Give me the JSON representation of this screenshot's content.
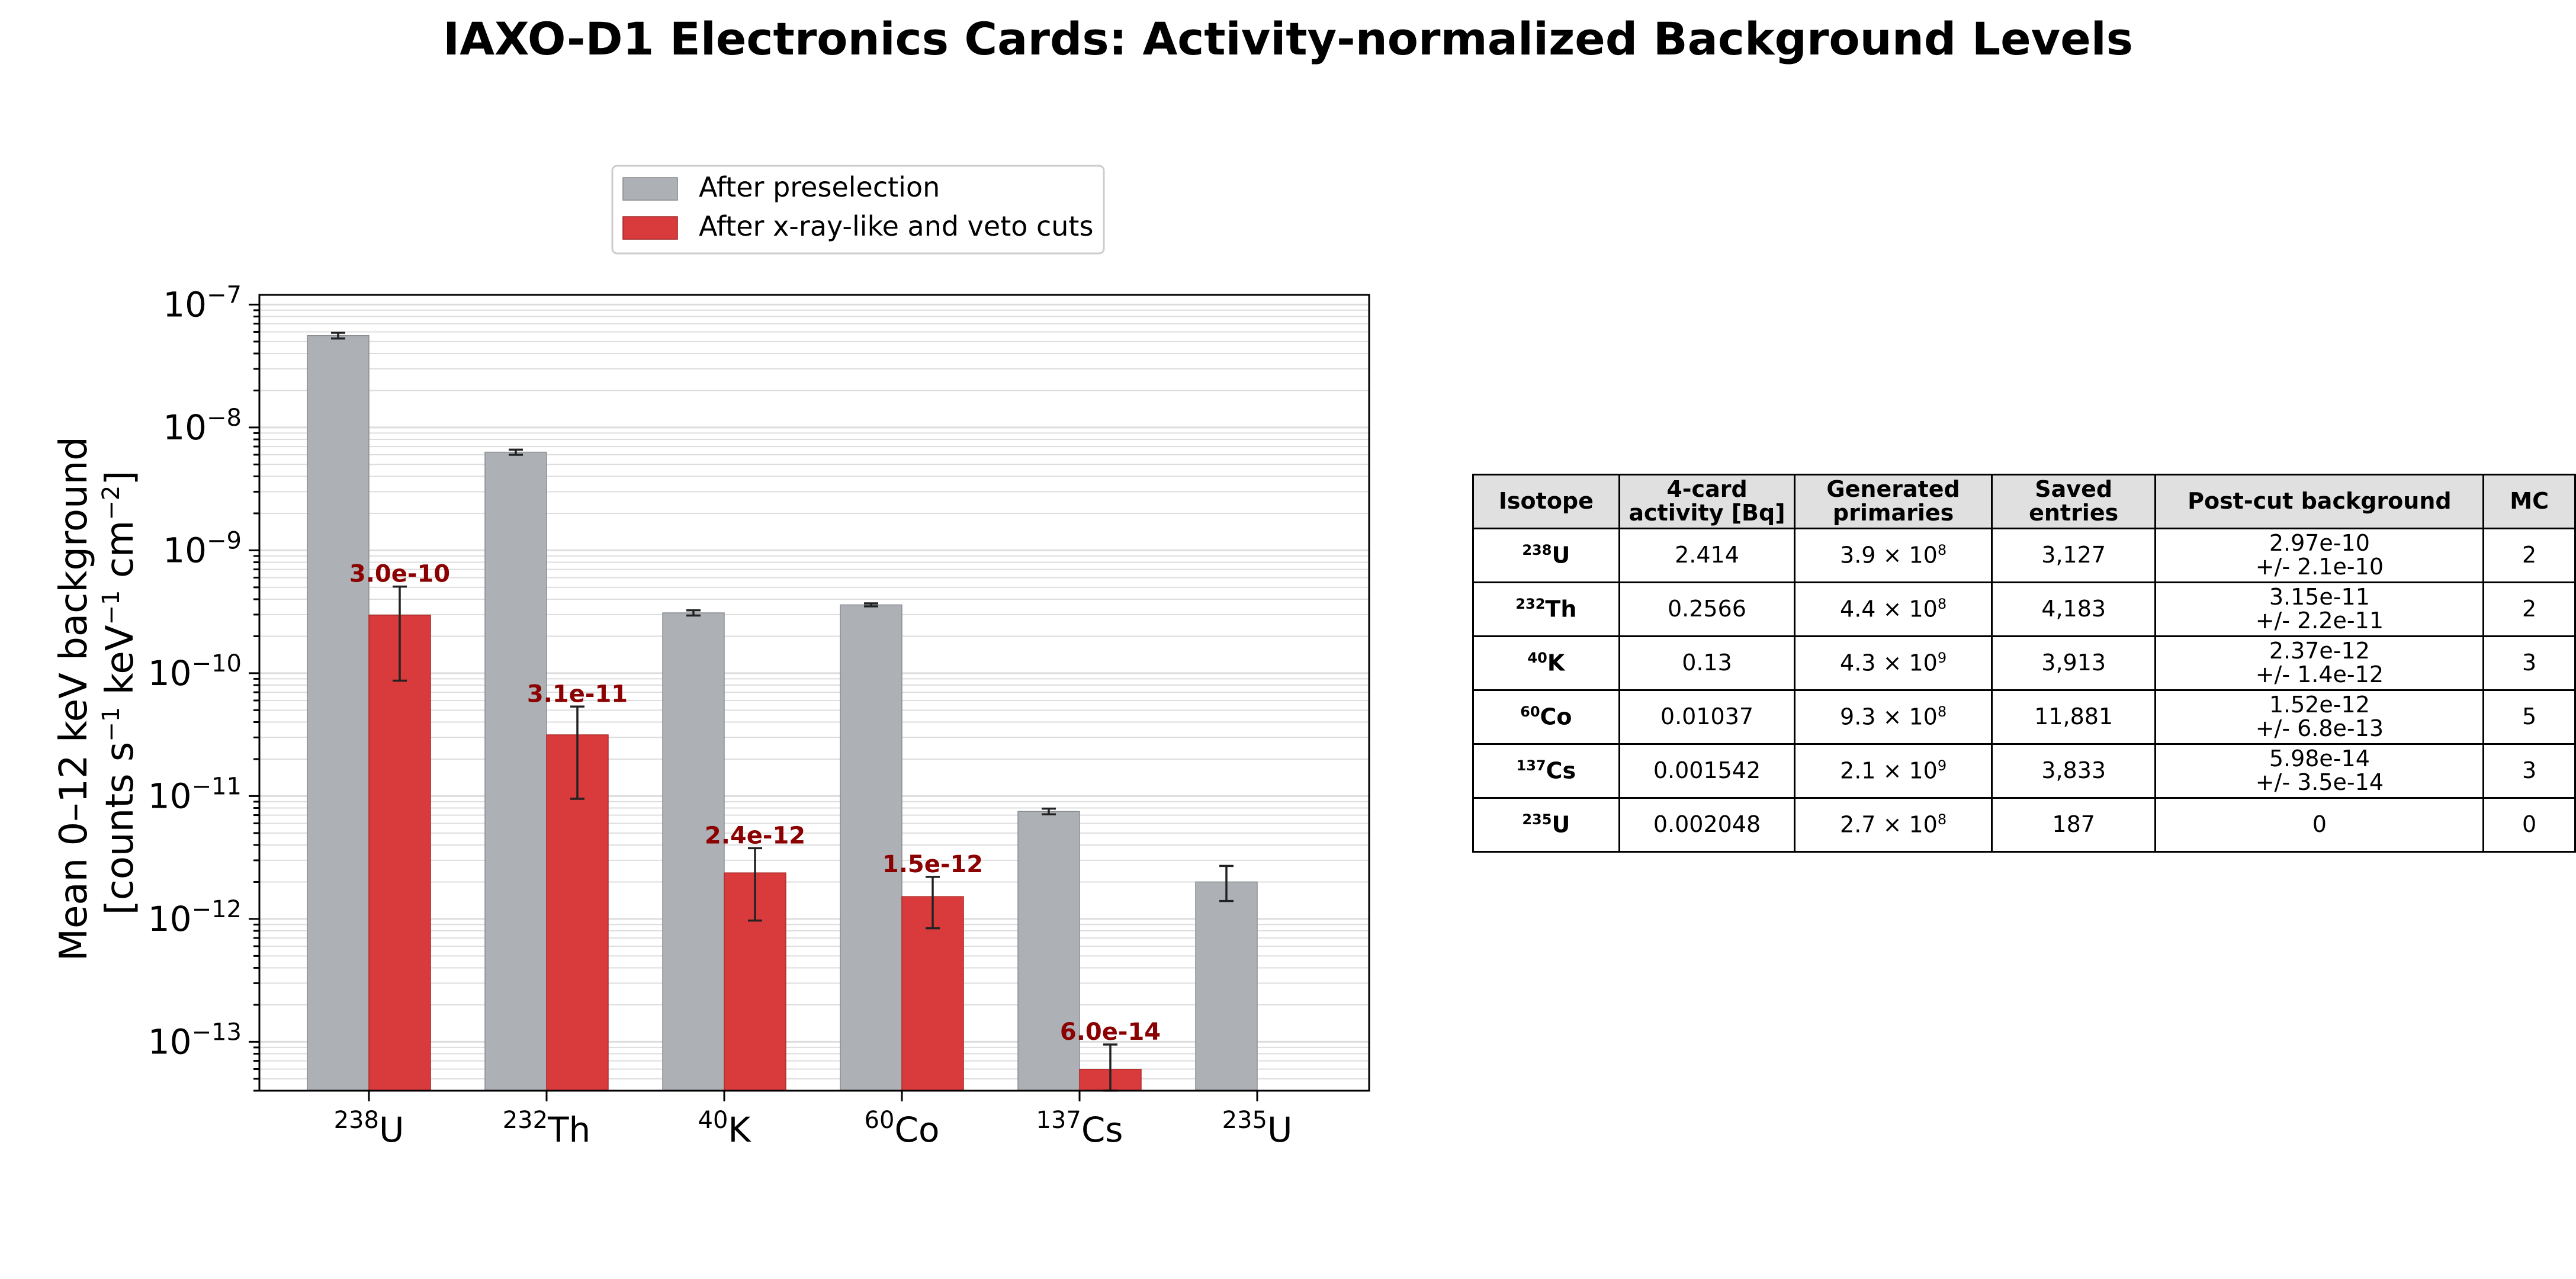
{
  "title": "IAXO-D1 Electronics Cards: Activity-normalized Background Levels",
  "colors": {
    "pre": "#adb1b6",
    "post": "#d93b3c",
    "post_label": "#8b0000",
    "grid": "#dddddd"
  },
  "chart_data": {
    "type": "bar",
    "yscale": "log",
    "ylim": [
      4e-14,
      1.2e-07
    ],
    "ylabel_line1": "Mean 0–12 keV background",
    "ylabel_line2_parts": {
      "open": "[counts s",
      "exp1": "−1",
      "mid": " keV",
      "exp2": "−1",
      "cm": " cm",
      "exp3": "−2",
      "close": "]"
    },
    "yticks": [
      {
        "base": "10",
        "exp": "−7",
        "value": 1e-07
      },
      {
        "base": "10",
        "exp": "−8",
        "value": 1e-08
      },
      {
        "base": "10",
        "exp": "−9",
        "value": 1e-09
      },
      {
        "base": "10",
        "exp": "−10",
        "value": 1e-10
      },
      {
        "base": "10",
        "exp": "−11",
        "value": 1e-11
      },
      {
        "base": "10",
        "exp": "−12",
        "value": 1e-12
      },
      {
        "base": "10",
        "exp": "−13",
        "value": 1e-13
      }
    ],
    "categories": [
      {
        "mass": "238",
        "symbol": "U"
      },
      {
        "mass": "232",
        "symbol": "Th"
      },
      {
        "mass": "40",
        "symbol": "K"
      },
      {
        "mass": "60",
        "symbol": "Co"
      },
      {
        "mass": "137",
        "symbol": "Cs"
      },
      {
        "mass": "235",
        "symbol": "U"
      }
    ],
    "legend_position": "top-center",
    "series": [
      {
        "name": "After preselection",
        "values": [
          5.6e-08,
          6.3e-09,
          3.1e-10,
          3.6e-10,
          7.5e-12,
          2e-12
        ],
        "err_low": [
          5.3e-08,
          6e-09,
          2.95e-10,
          3.5e-10,
          7.1e-12,
          1.4e-12
        ],
        "err_high": [
          5.9e-08,
          6.6e-09,
          3.25e-10,
          3.7e-10,
          7.9e-12,
          2.7e-12
        ]
      },
      {
        "name": "After x-ray-like and veto cuts",
        "values": [
          2.97e-10,
          3.15e-11,
          2.37e-12,
          1.52e-12,
          5.98e-14,
          null
        ],
        "err_low": [
          8.7e-11,
          9.5e-12,
          9.7e-13,
          8.4e-13,
          2.5e-14,
          null
        ],
        "err_high": [
          5.07e-10,
          5.35e-11,
          3.77e-12,
          2.2e-12,
          9.5e-14,
          null
        ],
        "labels": [
          "3.0e-10",
          "3.1e-11",
          "2.4e-12",
          "1.5e-12",
          "6.0e-14",
          ""
        ]
      }
    ]
  },
  "table": {
    "headers": [
      "Isotope",
      "4-card activity [Bq]",
      "Generated primaries",
      "Saved entries",
      "Post-cut background",
      "MC"
    ],
    "rows": [
      {
        "mass": "238",
        "symbol": "U",
        "activity": "2.414",
        "prim_mant": "3.9",
        "prim_exp": "8",
        "entries": "3,127",
        "bg_val": "2.97e-10",
        "bg_err": "+/- 2.1e-10",
        "mc": "2"
      },
      {
        "mass": "232",
        "symbol": "Th",
        "activity": "0.2566",
        "prim_mant": "4.4",
        "prim_exp": "8",
        "entries": "4,183",
        "bg_val": "3.15e-11",
        "bg_err": "+/- 2.2e-11",
        "mc": "2"
      },
      {
        "mass": "40",
        "symbol": "K",
        "activity": "0.13",
        "prim_mant": "4.3",
        "prim_exp": "9",
        "entries": "3,913",
        "bg_val": "2.37e-12",
        "bg_err": "+/- 1.4e-12",
        "mc": "3"
      },
      {
        "mass": "60",
        "symbol": "Co",
        "activity": "0.01037",
        "prim_mant": "9.3",
        "prim_exp": "8",
        "entries": "11,881",
        "bg_val": "1.52e-12",
        "bg_err": "+/- 6.8e-13",
        "mc": "5"
      },
      {
        "mass": "137",
        "symbol": "Cs",
        "activity": "0.001542",
        "prim_mant": "2.1",
        "prim_exp": "9",
        "entries": "3,833",
        "bg_val": "5.98e-14",
        "bg_err": "+/- 3.5e-14",
        "mc": "3"
      },
      {
        "mass": "235",
        "symbol": "U",
        "activity": "0.002048",
        "prim_mant": "2.7",
        "prim_exp": "8",
        "entries": "187",
        "bg_val": "0",
        "bg_err": "",
        "mc": "0"
      }
    ]
  }
}
